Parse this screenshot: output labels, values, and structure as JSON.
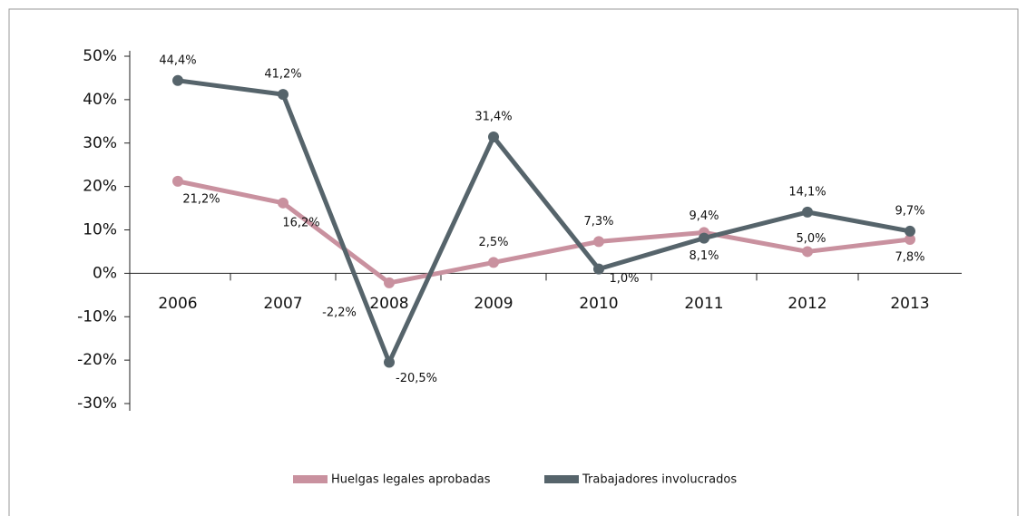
{
  "chart_data": {
    "type": "line",
    "categories": [
      "2006",
      "2007",
      "2008",
      "2009",
      "2010",
      "2011",
      "2012",
      "2013"
    ],
    "series": [
      {
        "name": "Huelgas legales aprobadas",
        "color": "#c9919f",
        "values": [
          21.2,
          16.2,
          -2.2,
          2.5,
          7.3,
          9.4,
          5.0,
          7.8
        ],
        "value_labels": [
          "21,2%",
          "16,2%",
          "-2,2%",
          "2,5%",
          "7,3%",
          "9,4%",
          "5,0%",
          "7,8%"
        ]
      },
      {
        "name": "Trabajadores involucrados",
        "color": "#56646b",
        "values": [
          44.4,
          41.2,
          -20.5,
          31.4,
          1.0,
          8.1,
          14.1,
          9.7
        ],
        "value_labels": [
          "44,4%",
          "41,2%",
          "-20,5%",
          "31,4%",
          "1,0%",
          "8,1%",
          "14,1%",
          "9,7%"
        ]
      }
    ],
    "ylim": [
      -30,
      50
    ],
    "yticks": [
      {
        "value": -30,
        "label": "-30%"
      },
      {
        "value": -20,
        "label": "-20%"
      },
      {
        "value": -10,
        "label": "-10%"
      },
      {
        "value": 0,
        "label": "0%"
      },
      {
        "value": 10,
        "label": "10%"
      },
      {
        "value": 20,
        "label": "20%"
      },
      {
        "value": 30,
        "label": "30%"
      },
      {
        "value": 40,
        "label": "40%"
      },
      {
        "value": 50,
        "label": "50%"
      }
    ],
    "legend": "bottom"
  }
}
